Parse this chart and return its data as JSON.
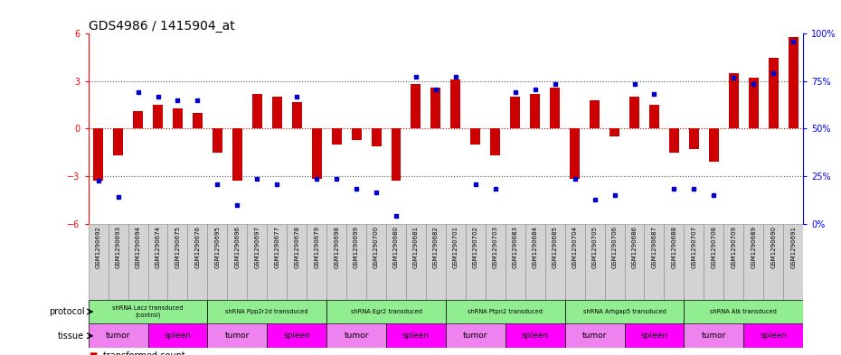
{
  "title": "GDS4986 / 1415904_at",
  "samples": [
    "GSM1290692",
    "GSM1290693",
    "GSM1290694",
    "GSM1290674",
    "GSM1290675",
    "GSM1290676",
    "GSM1290695",
    "GSM1290696",
    "GSM1290697",
    "GSM1290677",
    "GSM1290678",
    "GSM1290679",
    "GSM1290698",
    "GSM1290699",
    "GSM1290700",
    "GSM1290680",
    "GSM1290681",
    "GSM1290682",
    "GSM1290701",
    "GSM1290702",
    "GSM1290703",
    "GSM1290683",
    "GSM1290684",
    "GSM1290685",
    "GSM1290704",
    "GSM1290705",
    "GSM1290706",
    "GSM1290686",
    "GSM1290687",
    "GSM1290688",
    "GSM1290707",
    "GSM1290708",
    "GSM1290709",
    "GSM1290689",
    "GSM1290690",
    "GSM1290691"
  ],
  "bar_values": [
    -3.3,
    -1.7,
    1.1,
    1.5,
    1.3,
    1.0,
    -1.5,
    -3.3,
    2.2,
    2.0,
    1.7,
    -3.2,
    -1.0,
    -0.7,
    -1.1,
    -3.3,
    2.8,
    2.6,
    3.1,
    -1.0,
    -1.7,
    2.0,
    2.2,
    2.6,
    -3.2,
    1.8,
    -0.5,
    2.0,
    1.5,
    -1.5,
    -1.3,
    -2.1,
    3.5,
    3.2,
    4.5,
    5.8
  ],
  "blue_values": [
    -3.3,
    -4.3,
    2.3,
    2.0,
    1.8,
    1.8,
    -3.5,
    -4.8,
    -3.2,
    -3.5,
    2.0,
    -3.2,
    -3.2,
    -3.8,
    -4.0,
    -5.5,
    3.3,
    2.5,
    3.3,
    -3.5,
    -3.8,
    2.3,
    2.5,
    2.8,
    -3.2,
    -4.5,
    -4.2,
    2.8,
    2.2,
    -3.8,
    -3.8,
    -4.2,
    3.2,
    2.8,
    3.5,
    5.5
  ],
  "ylim": [
    -6,
    6
  ],
  "yticks_left": [
    -6,
    -3,
    0,
    3,
    6
  ],
  "right_tick_positions": [
    -6,
    -3,
    0,
    3,
    6
  ],
  "right_tick_labels": [
    "0%",
    "25%",
    "50%",
    "75%",
    "100%"
  ],
  "hlines_dotted": [
    -3,
    3
  ],
  "hline_zero_color": "#cc0000",
  "bar_color": "#cc0000",
  "blue_color": "#0000cc",
  "dotted_line_color": "#555555",
  "background_color": "#ffffff",
  "title_fontsize": 10,
  "tick_fontsize": 7,
  "protocol_data": [
    {
      "label": "shRNA Lacz transduced\n(control)",
      "start": 0,
      "end": 6
    },
    {
      "label": "shRNA Ppp2r2d transduced",
      "start": 6,
      "end": 12
    },
    {
      "label": "shRNA Egr2 transduced",
      "start": 12,
      "end": 18
    },
    {
      "label": "shRNA Ptpn2 transduced",
      "start": 18,
      "end": 24
    },
    {
      "label": "shRNA Arhgap5 transduced",
      "start": 24,
      "end": 30
    },
    {
      "label": "shRNA Alk transduced",
      "start": 30,
      "end": 36
    }
  ],
  "tissue_layout": [
    {
      "label": "tumor",
      "start": 0,
      "end": 3
    },
    {
      "label": "spleen",
      "start": 3,
      "end": 6
    },
    {
      "label": "tumor",
      "start": 6,
      "end": 9
    },
    {
      "label": "spleen",
      "start": 9,
      "end": 12
    },
    {
      "label": "tumor",
      "start": 12,
      "end": 15
    },
    {
      "label": "spleen",
      "start": 15,
      "end": 18
    },
    {
      "label": "tumor",
      "start": 18,
      "end": 21
    },
    {
      "label": "spleen",
      "start": 21,
      "end": 24
    },
    {
      "label": "tumor",
      "start": 24,
      "end": 27
    },
    {
      "label": "spleen",
      "start": 27,
      "end": 30
    },
    {
      "label": "tumor",
      "start": 30,
      "end": 33
    },
    {
      "label": "spleen",
      "start": 33,
      "end": 36
    }
  ],
  "tumor_color": "#ee82ee",
  "spleen_color": "#ff00ff",
  "protocol_color": "#90ee90",
  "sample_box_color": "#d3d3d3"
}
